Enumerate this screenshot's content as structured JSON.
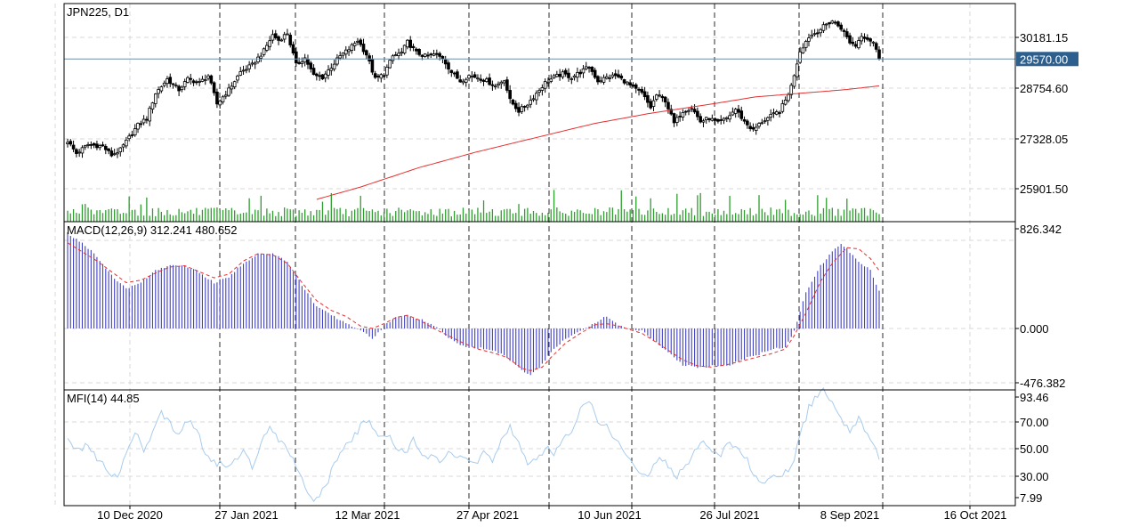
{
  "chart_data": [
    {
      "type": "candlestick",
      "title": "JPN225, D1",
      "price_ticks": [
        "30181.15",
        "28754.60",
        "27328.05",
        "25901.50"
      ],
      "price_tick_values": [
        30181.15,
        28754.6,
        27328.05,
        25901.5
      ],
      "current_price": "29570.00",
      "current_price_value": 29570.0,
      "date_labels": [
        "10 Dec 2020",
        "27 Jan 2021",
        "12 Mar 2021",
        "27 Apr 2021",
        "10 Jun 2021",
        "26 Jul 2021",
        "8 Sep 2021",
        "16 Oct 2021"
      ],
      "sma_color": "#e53030",
      "volume_color": "#2e9e2e",
      "anchors": [
        [
          0,
          27250
        ],
        [
          3,
          26900
        ],
        [
          7,
          27150
        ],
        [
          12,
          27100
        ],
        [
          15,
          26850
        ],
        [
          18,
          27000
        ],
        [
          21,
          27350
        ],
        [
          24,
          27700
        ],
        [
          27,
          27900
        ],
        [
          30,
          28600
        ],
        [
          34,
          29000
        ],
        [
          38,
          28700
        ],
        [
          41,
          29000
        ],
        [
          45,
          28900
        ],
        [
          48,
          29100
        ],
        [
          51,
          28300
        ],
        [
          55,
          28700
        ],
        [
          59,
          29200
        ],
        [
          63,
          29400
        ],
        [
          67,
          29800
        ],
        [
          70,
          30250
        ],
        [
          72,
          30100
        ],
        [
          75,
          30300
        ],
        [
          78,
          29400
        ],
        [
          81,
          29600
        ],
        [
          84,
          29100
        ],
        [
          87,
          29050
        ],
        [
          90,
          29350
        ],
        [
          93,
          29650
        ],
        [
          96,
          29850
        ],
        [
          99,
          30100
        ],
        [
          102,
          29700
        ],
        [
          105,
          29000
        ],
        [
          108,
          29150
        ],
        [
          111,
          29650
        ],
        [
          114,
          29750
        ],
        [
          116,
          30050
        ],
        [
          119,
          29750
        ],
        [
          122,
          29650
        ],
        [
          125,
          29700
        ],
        [
          128,
          29600
        ],
        [
          131,
          29200
        ],
        [
          134,
          28950
        ],
        [
          137,
          29100
        ],
        [
          140,
          29050
        ],
        [
          143,
          28950
        ],
        [
          146,
          28800
        ],
        [
          149,
          29000
        ],
        [
          151,
          28400
        ],
        [
          154,
          28100
        ],
        [
          157,
          28300
        ],
        [
          160,
          28600
        ],
        [
          163,
          28900
        ],
        [
          166,
          29050
        ],
        [
          169,
          29150
        ],
        [
          172,
          29050
        ],
        [
          175,
          29200
        ],
        [
          178,
          29350
        ],
        [
          181,
          28950
        ],
        [
          184,
          29050
        ],
        [
          187,
          29100
        ],
        [
          190,
          28950
        ],
        [
          193,
          28750
        ],
        [
          196,
          28600
        ],
        [
          199,
          28200
        ],
        [
          201,
          28550
        ],
        [
          204,
          28400
        ],
        [
          207,
          27750
        ],
        [
          210,
          28100
        ],
        [
          213,
          28200
        ],
        [
          216,
          27800
        ],
        [
          219,
          27900
        ],
        [
          222,
          27750
        ],
        [
          225,
          27900
        ],
        [
          228,
          28150
        ],
        [
          231,
          27800
        ],
        [
          234,
          27550
        ],
        [
          237,
          27800
        ],
        [
          240,
          27950
        ],
        [
          243,
          28100
        ],
        [
          245,
          28400
        ],
        [
          247,
          28800
        ],
        [
          250,
          29800
        ],
        [
          253,
          30200
        ],
        [
          256,
          30350
        ],
        [
          259,
          30550
        ],
        [
          261,
          30650
        ],
        [
          264,
          30450
        ],
        [
          267,
          30050
        ],
        [
          269,
          29950
        ],
        [
          271,
          30250
        ],
        [
          273,
          30150
        ],
        [
          275,
          30050
        ],
        [
          277,
          29570
        ]
      ],
      "sma_anchors": [
        [
          85,
          25600
        ],
        [
          100,
          25950
        ],
        [
          120,
          26500
        ],
        [
          140,
          26950
        ],
        [
          160,
          27350
        ],
        [
          180,
          27750
        ],
        [
          200,
          28050
        ],
        [
          220,
          28300
        ],
        [
          235,
          28500
        ],
        [
          250,
          28600
        ],
        [
          265,
          28700
        ],
        [
          277,
          28810
        ]
      ]
    },
    {
      "type": "bar",
      "title": "MACD(12,26,9) 312.241 480.652",
      "ticks": [
        "826.342",
        "0.000",
        "-476.382"
      ],
      "tick_values": [
        826.342,
        0,
        -476.382
      ],
      "histogram_color": "#4040c8",
      "signal_color": "#e53030",
      "macd_anchors": [
        [
          0,
          790
        ],
        [
          8,
          650
        ],
        [
          15,
          440
        ],
        [
          20,
          330
        ],
        [
          25,
          380
        ],
        [
          30,
          480
        ],
        [
          35,
          520
        ],
        [
          40,
          520
        ],
        [
          45,
          460
        ],
        [
          50,
          380
        ],
        [
          55,
          430
        ],
        [
          60,
          540
        ],
        [
          65,
          620
        ],
        [
          70,
          620
        ],
        [
          75,
          550
        ],
        [
          80,
          360
        ],
        [
          85,
          180
        ],
        [
          90,
          110
        ],
        [
          95,
          50
        ],
        [
          100,
          -20
        ],
        [
          104,
          -80
        ],
        [
          108,
          20
        ],
        [
          112,
          90
        ],
        [
          116,
          110
        ],
        [
          120,
          80
        ],
        [
          125,
          20
        ],
        [
          130,
          -70
        ],
        [
          135,
          -150
        ],
        [
          140,
          -160
        ],
        [
          145,
          -180
        ],
        [
          150,
          -240
        ],
        [
          155,
          -350
        ],
        [
          158,
          -380
        ],
        [
          162,
          -300
        ],
        [
          165,
          -200
        ],
        [
          170,
          -80
        ],
        [
          175,
          -20
        ],
        [
          180,
          50
        ],
        [
          184,
          100
        ],
        [
          188,
          30
        ],
        [
          192,
          -10
        ],
        [
          196,
          -20
        ],
        [
          200,
          -100
        ],
        [
          205,
          -200
        ],
        [
          210,
          -300
        ],
        [
          215,
          -330
        ],
        [
          220,
          -310
        ],
        [
          225,
          -310
        ],
        [
          230,
          -260
        ],
        [
          235,
          -220
        ],
        [
          240,
          -180
        ],
        [
          245,
          -150
        ],
        [
          248,
          -20
        ],
        [
          252,
          300
        ],
        [
          257,
          520
        ],
        [
          261,
          640
        ],
        [
          264,
          700
        ],
        [
          266,
          660
        ],
        [
          270,
          560
        ],
        [
          274,
          480
        ],
        [
          277,
          312
        ]
      ],
      "signal_anchors": [
        [
          0,
          710
        ],
        [
          10,
          560
        ],
        [
          20,
          380
        ],
        [
          25,
          400
        ],
        [
          30,
          460
        ],
        [
          35,
          510
        ],
        [
          40,
          520
        ],
        [
          45,
          470
        ],
        [
          50,
          420
        ],
        [
          55,
          450
        ],
        [
          60,
          560
        ],
        [
          65,
          620
        ],
        [
          70,
          610
        ],
        [
          75,
          540
        ],
        [
          80,
          380
        ],
        [
          85,
          230
        ],
        [
          90,
          150
        ],
        [
          95,
          100
        ],
        [
          100,
          20
        ],
        [
          104,
          0
        ],
        [
          108,
          40
        ],
        [
          112,
          90
        ],
        [
          116,
          110
        ],
        [
          120,
          70
        ],
        [
          125,
          0
        ],
        [
          130,
          -60
        ],
        [
          135,
          -120
        ],
        [
          140,
          -170
        ],
        [
          145,
          -200
        ],
        [
          150,
          -240
        ],
        [
          155,
          -330
        ],
        [
          158,
          -350
        ],
        [
          162,
          -320
        ],
        [
          165,
          -240
        ],
        [
          170,
          -120
        ],
        [
          175,
          -40
        ],
        [
          180,
          30
        ],
        [
          184,
          40
        ],
        [
          188,
          20
        ],
        [
          192,
          -10
        ],
        [
          196,
          -40
        ],
        [
          200,
          -100
        ],
        [
          205,
          -180
        ],
        [
          210,
          -260
        ],
        [
          215,
          -310
        ],
        [
          220,
          -320
        ],
        [
          225,
          -300
        ],
        [
          230,
          -270
        ],
        [
          235,
          -240
        ],
        [
          240,
          -210
        ],
        [
          245,
          -170
        ],
        [
          248,
          -60
        ],
        [
          252,
          130
        ],
        [
          257,
          390
        ],
        [
          261,
          540
        ],
        [
          264,
          620
        ],
        [
          266,
          670
        ],
        [
          270,
          660
        ],
        [
          274,
          580
        ],
        [
          277,
          480
        ]
      ]
    },
    {
      "type": "line",
      "title": "MFI(14) 44.85",
      "ticks": [
        "93.46",
        "70.00",
        "50.00",
        "30.00",
        "7.99"
      ],
      "tick_values": [
        93.46,
        70.0,
        50.0,
        30.0,
        7.99
      ],
      "line_color": "#a8ccee",
      "mfi_anchors": [
        [
          0,
          58
        ],
        [
          4,
          48
        ],
        [
          7,
          55
        ],
        [
          10,
          42
        ],
        [
          14,
          34
        ],
        [
          17,
          30
        ],
        [
          20,
          48
        ],
        [
          23,
          62
        ],
        [
          26,
          50
        ],
        [
          29,
          60
        ],
        [
          32,
          78
        ],
        [
          35,
          68
        ],
        [
          38,
          60
        ],
        [
          41,
          72
        ],
        [
          44,
          64
        ],
        [
          48,
          42
        ],
        [
          51,
          40
        ],
        [
          54,
          36
        ],
        [
          57,
          42
        ],
        [
          60,
          48
        ],
        [
          63,
          38
        ],
        [
          66,
          54
        ],
        [
          69,
          68
        ],
        [
          72,
          58
        ],
        [
          75,
          52
        ],
        [
          78,
          38
        ],
        [
          82,
          18
        ],
        [
          85,
          12
        ],
        [
          88,
          22
        ],
        [
          91,
          38
        ],
        [
          94,
          52
        ],
        [
          97,
          58
        ],
        [
          100,
          66
        ],
        [
          103,
          72
        ],
        [
          106,
          58
        ],
        [
          109,
          60
        ],
        [
          112,
          52
        ],
        [
          115,
          46
        ],
        [
          118,
          58
        ],
        [
          121,
          48
        ],
        [
          124,
          44
        ],
        [
          127,
          40
        ],
        [
          130,
          46
        ],
        [
          133,
          42
        ],
        [
          136,
          44
        ],
        [
          139,
          38
        ],
        [
          142,
          48
        ],
        [
          145,
          42
        ],
        [
          148,
          58
        ],
        [
          151,
          66
        ],
        [
          154,
          54
        ],
        [
          157,
          38
        ],
        [
          160,
          42
        ],
        [
          163,
          50
        ],
        [
          166,
          48
        ],
        [
          169,
          56
        ],
        [
          172,
          64
        ],
        [
          175,
          78
        ],
        [
          178,
          84
        ],
        [
          181,
          72
        ],
        [
          184,
          66
        ],
        [
          187,
          58
        ],
        [
          190,
          48
        ],
        [
          193,
          38
        ],
        [
          196,
          30
        ],
        [
          199,
          34
        ],
        [
          202,
          42
        ],
        [
          205,
          38
        ],
        [
          208,
          30
        ],
        [
          211,
          38
        ],
        [
          214,
          48
        ],
        [
          217,
          58
        ],
        [
          220,
          48
        ],
        [
          223,
          46
        ],
        [
          226,
          54
        ],
        [
          229,
          48
        ],
        [
          232,
          42
        ],
        [
          235,
          30
        ],
        [
          238,
          24
        ],
        [
          241,
          28
        ],
        [
          244,
          32
        ],
        [
          247,
          36
        ],
        [
          250,
          60
        ],
        [
          253,
          80
        ],
        [
          256,
          90
        ],
        [
          258,
          92
        ],
        [
          261,
          82
        ],
        [
          264,
          72
        ],
        [
          267,
          64
        ],
        [
          270,
          72
        ],
        [
          273,
          60
        ],
        [
          275,
          56
        ],
        [
          277,
          45
        ]
      ]
    }
  ]
}
